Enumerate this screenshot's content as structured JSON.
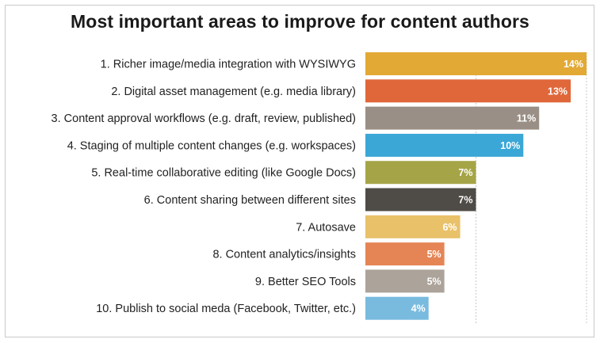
{
  "chart_data": {
    "type": "bar",
    "orientation": "horizontal",
    "title": "Most important areas to improve for content authors",
    "categories": [
      "1. Richer image/media integration with WYSIWYG",
      "2. Digital asset management (e.g. media library)",
      "3. Content approval workflows (e.g. draft, review, published)",
      "4. Staging of multiple content changes (e.g. workspaces)",
      "5. Real-time collaborative editing (like Google Docs)",
      "6. Content sharing between different sites",
      "7. Autosave",
      "8. Content analytics/insights",
      "9. Better SEO Tools",
      "10. Publish to social meda (Facebook, Twitter, etc.)"
    ],
    "values": [
      14,
      13,
      11,
      10,
      7,
      7,
      6,
      5,
      5,
      4
    ],
    "value_labels": [
      "14%",
      "13%",
      "11%",
      "10%",
      "7%",
      "7%",
      "6%",
      "5%",
      "5%",
      "4%"
    ],
    "colors": [
      "#e2a935",
      "#e0673a",
      "#9a8f86",
      "#3ba7d6",
      "#a5a547",
      "#4f4b46",
      "#e9c169",
      "#e58555",
      "#aca39a",
      "#79bbdf"
    ],
    "xlim": [
      0,
      14
    ],
    "gridlines": [
      7,
      14
    ],
    "grid": true,
    "legend": "none"
  }
}
